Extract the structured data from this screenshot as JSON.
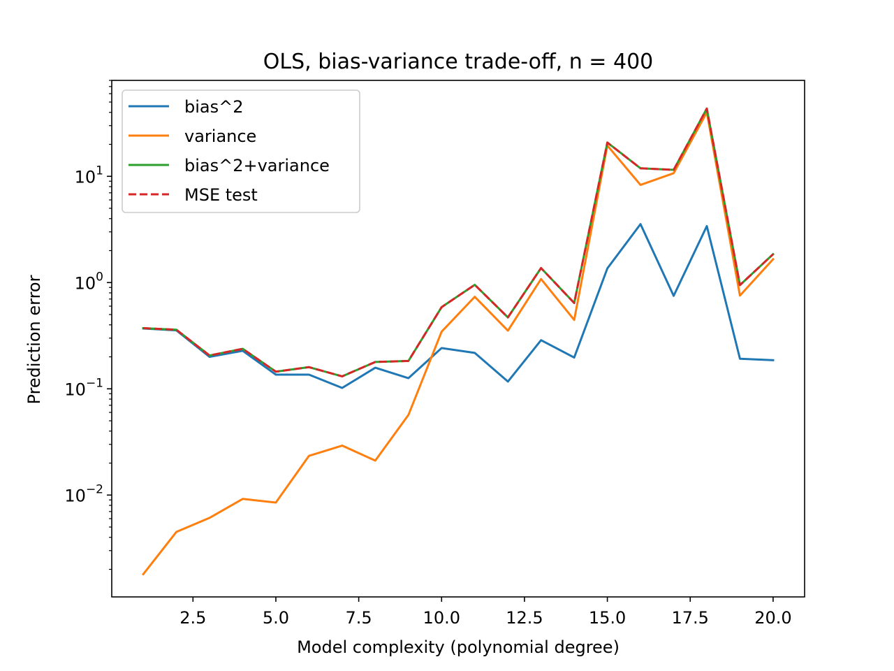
{
  "chart_data": {
    "type": "line",
    "title": "OLS, bias-variance trade-off, n = 400",
    "xlabel": "Model complexity (polynomial degree)",
    "ylabel": "Prediction error",
    "yscale": "log",
    "xlim": [
      0.05,
      20.95
    ],
    "ylim": [
      0.0011,
      80
    ],
    "grid": false,
    "legend_position": "top-left",
    "x_ticks": [
      {
        "value": 2.5,
        "label": "2.5"
      },
      {
        "value": 5.0,
        "label": "5.0"
      },
      {
        "value": 7.5,
        "label": "7.5"
      },
      {
        "value": 10.0,
        "label": "10.0"
      },
      {
        "value": 12.5,
        "label": "12.5"
      },
      {
        "value": 15.0,
        "label": "15.0"
      },
      {
        "value": 17.5,
        "label": "17.5"
      },
      {
        "value": 20.0,
        "label": "20.0"
      }
    ],
    "y_ticks": [
      {
        "value": 0.01,
        "base": "10",
        "exp": "−2"
      },
      {
        "value": 0.1,
        "base": "10",
        "exp": "−1"
      },
      {
        "value": 1,
        "base": "10",
        "exp": "0"
      },
      {
        "value": 10,
        "base": "10",
        "exp": "1"
      }
    ],
    "x": [
      1,
      2,
      3,
      4,
      5,
      6,
      7,
      8,
      9,
      10,
      11,
      12,
      13,
      14,
      15,
      16,
      17,
      18,
      19,
      20
    ],
    "series": [
      {
        "name": "bias^2",
        "color": "#1f77b4",
        "dash": "solid",
        "values": [
          0.37,
          0.355,
          0.2,
          0.228,
          0.136,
          0.136,
          0.102,
          0.158,
          0.126,
          0.242,
          0.218,
          0.117,
          0.287,
          0.197,
          1.36,
          3.55,
          0.75,
          3.4,
          0.192,
          0.186
        ]
      },
      {
        "name": "variance",
        "color": "#ff7f0e",
        "dash": "solid",
        "values": [
          0.0018,
          0.0045,
          0.0061,
          0.0092,
          0.0085,
          0.0234,
          0.0292,
          0.0211,
          0.0568,
          0.345,
          0.735,
          0.353,
          1.08,
          0.445,
          19.5,
          8.3,
          10.7,
          40.0,
          0.755,
          1.66
        ]
      },
      {
        "name": "bias^2+variance",
        "color": "#2ca02c",
        "dash": "solid",
        "values": [
          0.372,
          0.36,
          0.206,
          0.238,
          0.145,
          0.16,
          0.131,
          0.179,
          0.183,
          0.587,
          0.953,
          0.47,
          1.37,
          0.642,
          20.8,
          11.9,
          11.5,
          43.4,
          0.947,
          1.85
        ]
      },
      {
        "name": "MSE test",
        "color": "#d62728",
        "dash": "dashed",
        "values": [
          0.372,
          0.36,
          0.206,
          0.238,
          0.145,
          0.16,
          0.131,
          0.179,
          0.183,
          0.587,
          0.953,
          0.47,
          1.37,
          0.642,
          20.8,
          11.9,
          11.5,
          43.4,
          0.947,
          1.85
        ]
      }
    ]
  }
}
